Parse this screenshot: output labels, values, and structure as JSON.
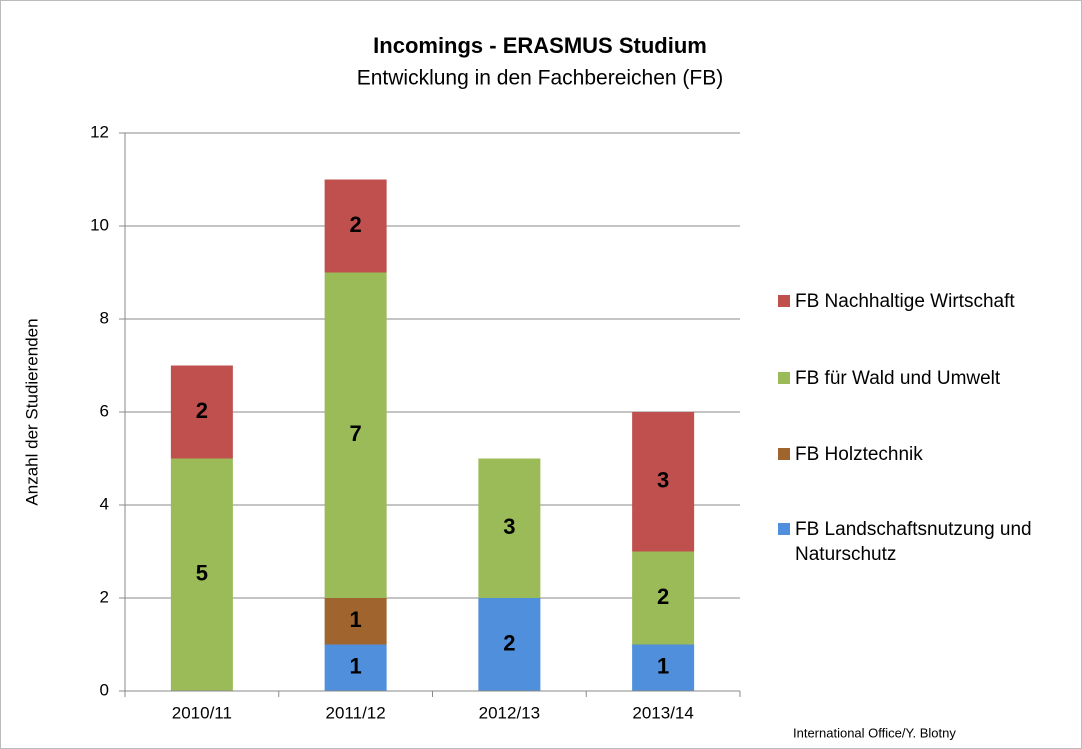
{
  "chart_data": {
    "type": "stacked_bar",
    "title": "Incomings - ERASMUS Studium",
    "subtitle": "Entwicklung in den Fachbereichen (FB)",
    "y_label": "Anzahl der Studierenden",
    "categories": [
      "2010/11",
      "2011/12",
      "2012/13",
      "2013/14"
    ],
    "series": [
      {
        "name": "FB Landschaftsnutzung und Naturschutz",
        "color": "#4f8fdb",
        "values": [
          0,
          1,
          2,
          1
        ]
      },
      {
        "name": "FB Holztechnik",
        "color": "#a0652f",
        "values": [
          0,
          1,
          0,
          0
        ]
      },
      {
        "name": "FB für Wald und Umwelt",
        "color": "#9bbb59",
        "values": [
          5,
          7,
          3,
          2
        ]
      },
      {
        "name": "FB Nachhaltige Wirtschaft",
        "color": "#c0504d",
        "values": [
          2,
          2,
          0,
          3
        ]
      }
    ],
    "ylim": [
      0,
      12
    ],
    "yticks": [
      0,
      2,
      4,
      6,
      8,
      10,
      12
    ],
    "grid": true,
    "legend": "right",
    "annotation": "International Office/Y. Blotny"
  }
}
